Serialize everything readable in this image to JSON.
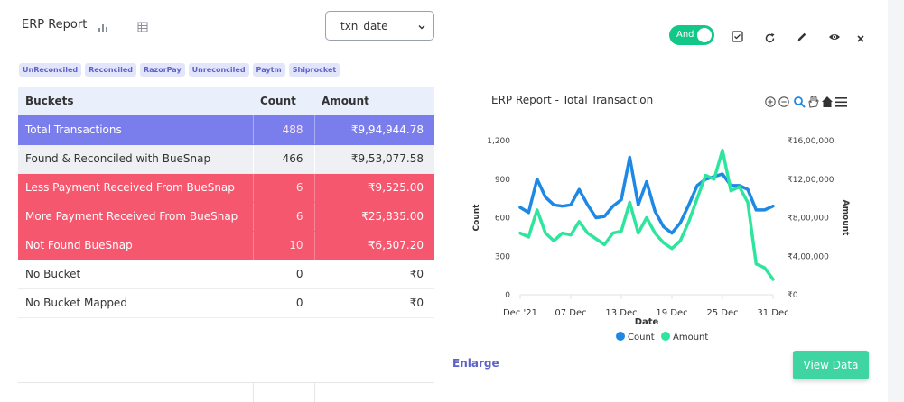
{
  "header": {
    "title": "ERP Report",
    "date_field": "txn_date"
  },
  "filter_tags": [
    "UnReconciled",
    "Reconciled",
    "RazorPay",
    "Unreconciled",
    "Paytm",
    "Shiprocket"
  ],
  "table": {
    "headers": [
      "Buckets",
      "Count",
      "Amount"
    ],
    "rows": [
      {
        "bucket": "Total  Transactions",
        "count": "488",
        "amount": "₹9,94,944.78"
      },
      {
        "bucket": "Found & Reconciled with BueSnap",
        "count": "466",
        "amount": "₹9,53,077.58"
      },
      {
        "bucket": "Less Payment Received From BueSnap",
        "count": "6",
        "amount": "₹9,525.00"
      },
      {
        "bucket": "More Payment Received From BueSnap",
        "count": "6",
        "amount": "₹25,835.00"
      },
      {
        "bucket": "Not Found BueSnap",
        "count": "10",
        "amount": "₹6,507.20"
      },
      {
        "bucket": "No Bucket",
        "count": "0",
        "amount": "₹0"
      },
      {
        "bucket": "No Bucket Mapped",
        "count": "0",
        "amount": "₹0"
      }
    ]
  },
  "toolbar": {
    "toggle_label": "And",
    "toggle_on": true
  },
  "colors": {
    "accent": "#5c62c9",
    "total_row": "#7a7eec",
    "alert_row": "#f5576f",
    "count_series": "#1e88e5",
    "amount_series": "#2ee59d"
  },
  "chart_data": {
    "type": "line",
    "title": "ERP Report - Total Transaction",
    "xlabel": "Date",
    "y_left_label": "Count",
    "y_right_label": "Amount",
    "x": [
      "2021-12-01",
      "2021-12-02",
      "2021-12-03",
      "2021-12-04",
      "2021-12-05",
      "2021-12-06",
      "2021-12-07",
      "2021-12-08",
      "2021-12-09",
      "2021-12-10",
      "2021-12-11",
      "2021-12-12",
      "2021-12-13",
      "2021-12-14",
      "2021-12-15",
      "2021-12-16",
      "2021-12-17",
      "2021-12-18",
      "2021-12-19",
      "2021-12-20",
      "2021-12-21",
      "2021-12-22",
      "2021-12-23",
      "2021-12-24",
      "2021-12-25",
      "2021-12-26",
      "2021-12-27",
      "2021-12-28",
      "2021-12-29",
      "2021-12-30",
      "2021-12-31"
    ],
    "x_tick_labels": [
      "Dec '21",
      "07 Dec",
      "13 Dec",
      "19 Dec",
      "25 Dec",
      "31 Dec"
    ],
    "y_left_ticks": [
      "0",
      "300",
      "600",
      "900",
      "1,200"
    ],
    "y_left_range": [
      0,
      1200
    ],
    "y_right_ticks": [
      "₹0",
      "₹4,00,000",
      "₹8,00,000",
      "₹12,00,000",
      "₹16,00,000"
    ],
    "y_right_range": [
      0,
      1600000
    ],
    "series": [
      {
        "name": "Count",
        "axis": "left",
        "values": [
          680,
          640,
          900,
          760,
          700,
          690,
          700,
          820,
          700,
          600,
          610,
          690,
          740,
          1070,
          700,
          880,
          650,
          530,
          480,
          560,
          700,
          850,
          900,
          920,
          940,
          850,
          850,
          820,
          660,
          660,
          690
        ]
      },
      {
        "name": "Amount",
        "axis": "right",
        "values": [
          640000,
          600000,
          880000,
          640000,
          560000,
          640000,
          620000,
          760000,
          640000,
          580000,
          520000,
          640000,
          660000,
          960000,
          640000,
          800000,
          640000,
          540000,
          480000,
          560000,
          760000,
          1000000,
          1240000,
          1200000,
          1500000,
          1080000,
          1120000,
          960000,
          320000,
          280000,
          160000
        ]
      }
    ],
    "legend": [
      "Count",
      "Amount"
    ],
    "legend_position": "bottom",
    "grid": false
  },
  "actions": {
    "enlarge_label": "Enlarge",
    "view_data_label": "View Data"
  }
}
